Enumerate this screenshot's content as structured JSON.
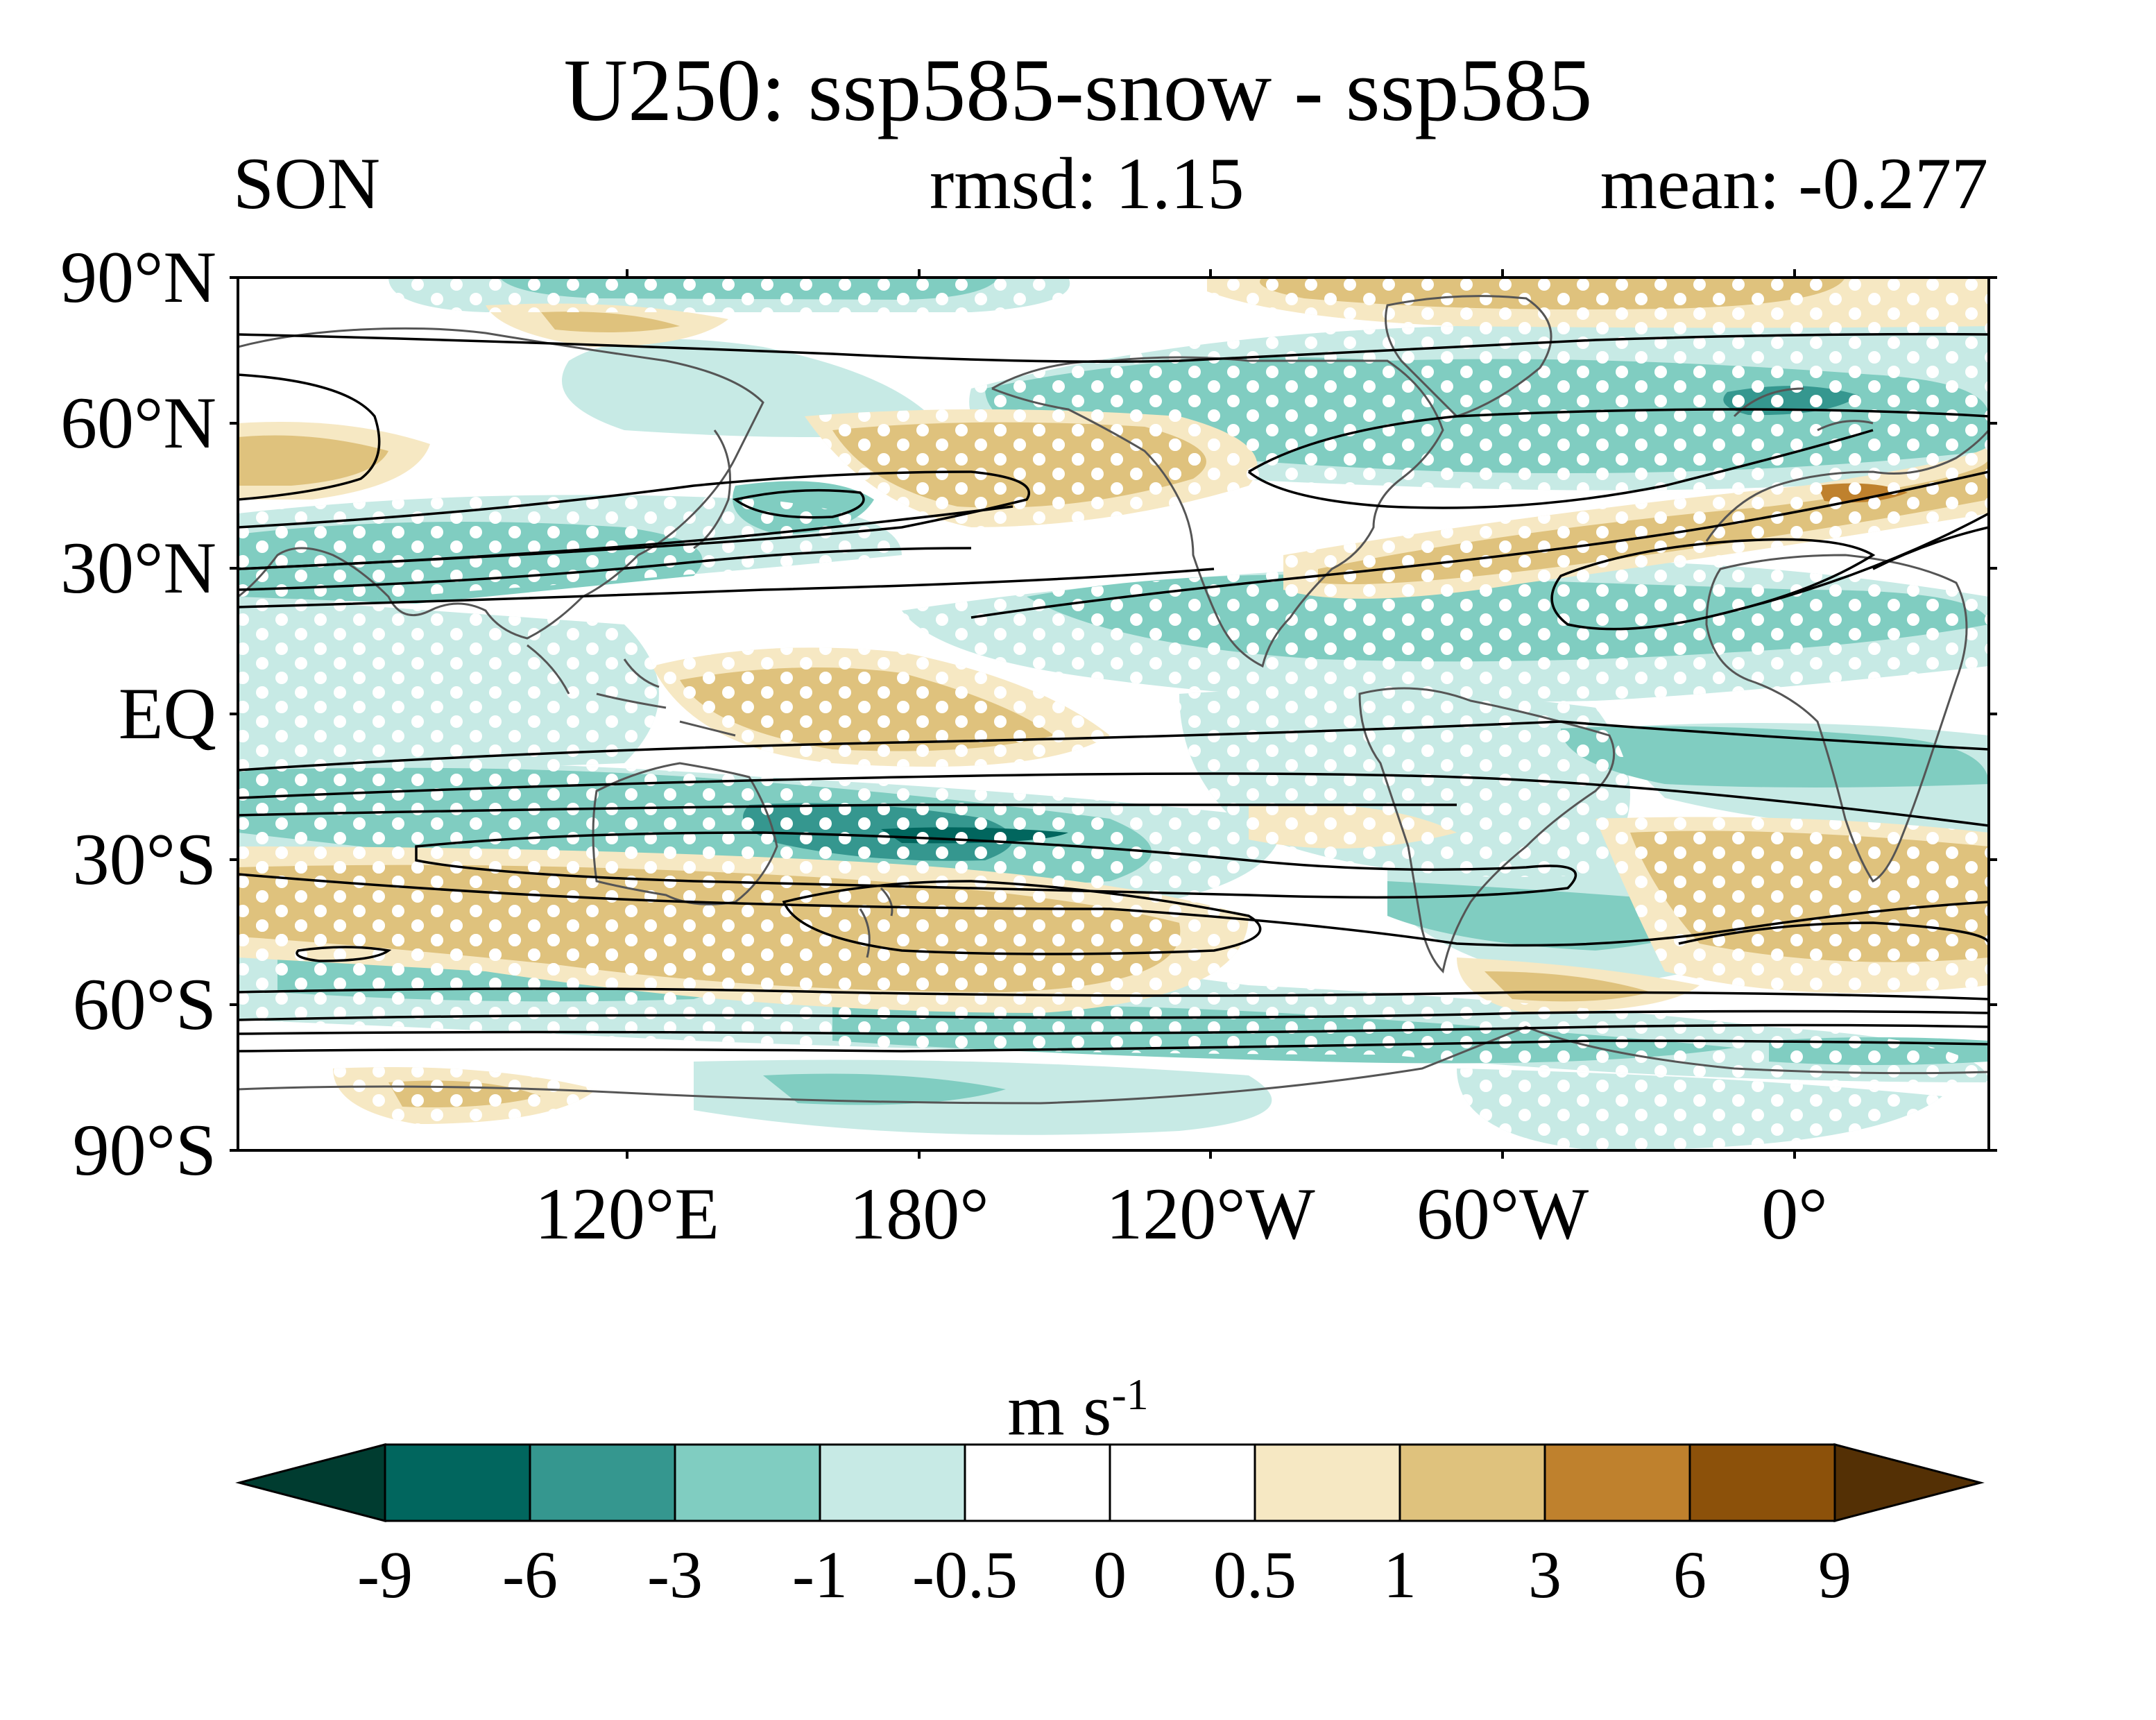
{
  "title": "U250: ssp585-snow - ssp585",
  "season": "SON",
  "rmsd_text": "rmsd: 1.15",
  "mean_text": "mean: -0.277",
  "map": {
    "projection": "equirectangular",
    "lon_range": [
      30,
      390
    ],
    "lat_range": [
      -90,
      90
    ],
    "lat_ticks": [
      "90°N",
      "60°N",
      "30°N",
      "EQ",
      "30°S",
      "60°S",
      "90°S"
    ],
    "lon_ticks": [
      "120°E",
      "180°",
      "120°W",
      "60°W",
      "0°"
    ],
    "stippling": "white dots mark significant differences"
  },
  "colorbar": {
    "unit": "m s",
    "unit_exp": "-1",
    "labels": [
      "-9",
      "-6",
      "-3",
      "-1",
      "-0.5",
      "0",
      "0.5",
      "1",
      "3",
      "6",
      "9"
    ],
    "colors": [
      "#003c30",
      "#01665e",
      "#35978f",
      "#80cdc1",
      "#c7eae5",
      "#ffffff",
      "#ffffff",
      "#f6e8c3",
      "#dfc27d",
      "#bf812d",
      "#8c510a",
      "#543005"
    ]
  }
}
